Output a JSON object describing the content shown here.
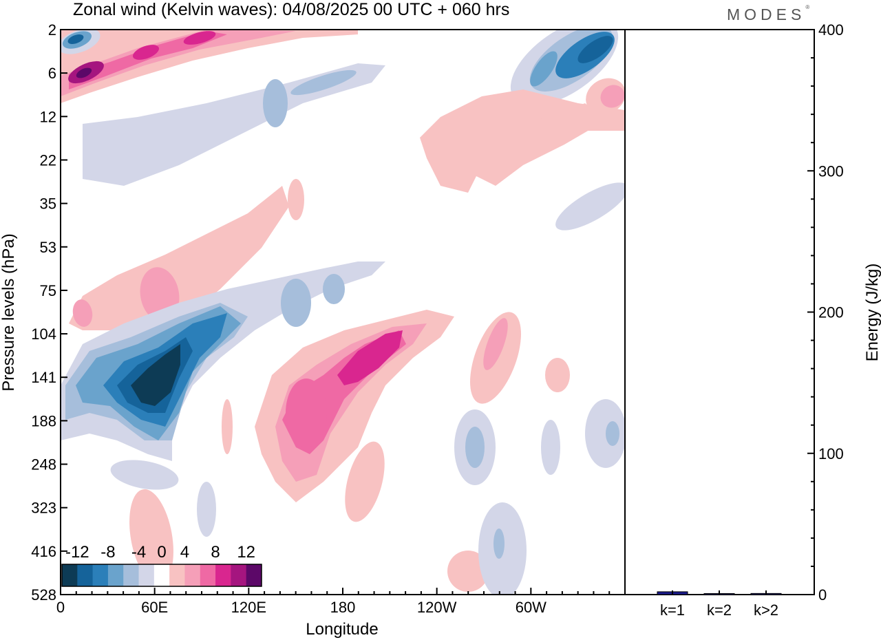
{
  "header": {
    "title": "Zonal wind (Kelvin waves):  04/08/2025  00 UTC  + 060 hrs",
    "brand": "MODES"
  },
  "chart_data": [
    {
      "type": "contour",
      "title": "Zonal wind (Kelvin waves):  04/08/2025  00 UTC  + 060 hrs",
      "xlabel": "Longitude",
      "ylabel": "Pressure levels (hPa)",
      "x_ticks": [
        "0",
        "60E",
        "120E",
        "180",
        "120W",
        "60W"
      ],
      "y_ticks": [
        "2",
        "6",
        "12",
        "22",
        "35",
        "53",
        "75",
        "104",
        "141",
        "188",
        "248",
        "323",
        "416",
        "528"
      ],
      "colorbar": {
        "labels": [
          "-12",
          "-8",
          "-4",
          "0",
          "4",
          "8",
          "12"
        ],
        "levels": [
          -14,
          -12,
          -10,
          -8,
          -6,
          -4,
          -2,
          2,
          4,
          6,
          8,
          10,
          12,
          14
        ],
        "colors": [
          "#0d3b55",
          "#15639a",
          "#2b7fb9",
          "#6aa3cc",
          "#a6bedb",
          "#d3d6e8",
          "#ffffff",
          "#f8c2c2",
          "#f59fb8",
          "#ef69a4",
          "#d9268f",
          "#a5157f",
          "#5c0868"
        ]
      },
      "features": [
        {
          "kind": "negative",
          "level": -14,
          "label": "strong easterly core near 60E, 141 hPa"
        },
        {
          "kind": "positive",
          "level": 8,
          "label": "westerly core near 150E-160W, 104-188 hPa"
        }
      ]
    },
    {
      "type": "bar",
      "categories": [
        "k=1",
        "k=2",
        "k>2"
      ],
      "values": [
        2,
        0.5,
        0.8
      ],
      "ylabel": "Energy (J/kg)",
      "ylim": [
        0,
        400
      ],
      "y_ticks": [
        "0",
        "100",
        "200",
        "300",
        "400"
      ],
      "bar_color": "#1a1a8c"
    }
  ]
}
